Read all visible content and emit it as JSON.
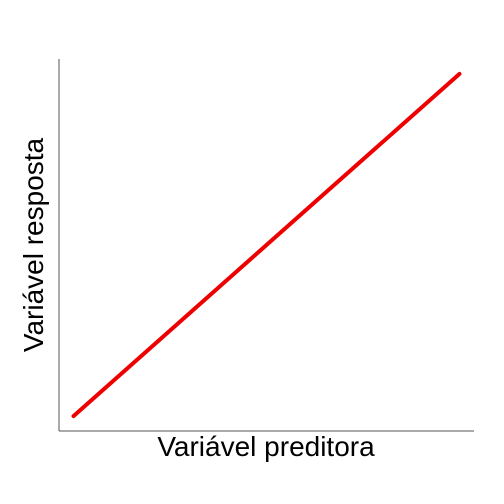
{
  "chart_data": {
    "type": "line",
    "title": "",
    "xlabel": "Variável preditora",
    "ylabel": "Variável resposta",
    "xlim": [
      0,
      1
    ],
    "ylim": [
      0,
      1
    ],
    "grid": false,
    "legend": "none",
    "series": [
      {
        "x": [
          0.035,
          0.965
        ],
        "y": [
          0.04,
          0.96
        ],
        "color": "#ee0000"
      }
    ]
  }
}
